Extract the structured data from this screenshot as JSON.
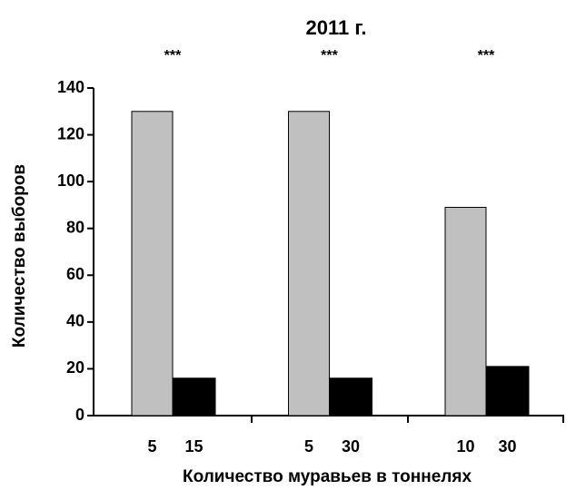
{
  "chart_data": {
    "type": "bar",
    "title": "2011 г.",
    "x_label": "Количество муравьев в тоннелях",
    "y_label": "Количество выборов",
    "annotations": [
      "***",
      "***",
      "***"
    ],
    "series": [
      {
        "color": "#c0c0c0",
        "labels": [
          "5",
          "5",
          "10"
        ],
        "values": [
          130,
          130,
          89
        ]
      },
      {
        "color": "#000000",
        "labels": [
          "15",
          "30",
          "30"
        ],
        "values": [
          16,
          16,
          21
        ]
      }
    ],
    "ylim": [
      0,
      140
    ],
    "yticks": [
      0,
      20,
      40,
      60,
      80,
      100,
      120,
      140
    ]
  }
}
